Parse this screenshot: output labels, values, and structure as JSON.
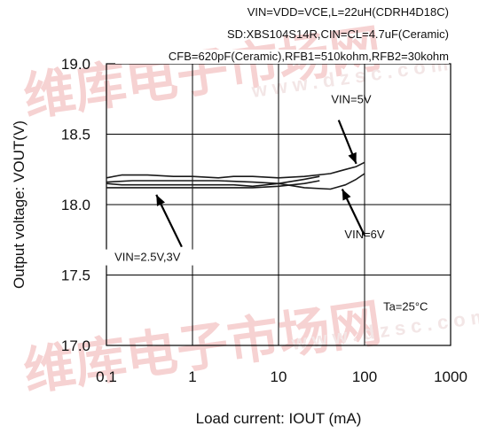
{
  "chart_data": {
    "type": "line",
    "title": "",
    "conditions": [
      "VIN=VDD=VCE,L=22uH(CDRH4D18C)",
      "SD:XBS104S14R,CIN=CL=4.7uF(Ceramic)",
      "CFB=620pF(Ceramic),RFB1=510kohm,RFB2=30kohm"
    ],
    "xlabel": "Load current: IOUT (mA)",
    "ylabel": "Output voltage: VOUT(V)",
    "xscale": "log",
    "xlim": [
      0.1,
      1000
    ],
    "ylim": [
      17.0,
      19.0
    ],
    "xticks": [
      "0.1",
      "1",
      "10",
      "100",
      "1000"
    ],
    "yticks": [
      "19.0",
      "18.5",
      "18.0",
      "17.5",
      "17.0"
    ],
    "grid": true,
    "series": [
      {
        "name": "VIN=5V",
        "x": [
          0.1,
          0.15,
          0.3,
          0.6,
          1,
          2,
          3,
          5,
          10,
          20,
          40,
          60,
          80,
          100
        ],
        "y": [
          18.19,
          18.21,
          18.21,
          18.2,
          18.2,
          18.19,
          18.2,
          18.2,
          18.19,
          18.2,
          18.22,
          18.25,
          18.27,
          18.3
        ]
      },
      {
        "name": "VIN=6V",
        "x": [
          0.1,
          0.2,
          0.5,
          1,
          2,
          5,
          10,
          20,
          40,
          60,
          80,
          100
        ],
        "y": [
          18.16,
          18.17,
          18.17,
          18.17,
          18.17,
          18.16,
          18.15,
          18.12,
          18.11,
          18.14,
          18.18,
          18.22
        ]
      },
      {
        "name": "VIN=2.5V",
        "x": [
          0.1,
          0.15,
          0.3,
          1,
          3,
          5,
          10,
          20,
          30
        ],
        "y": [
          18.15,
          18.14,
          18.14,
          18.14,
          18.14,
          18.13,
          18.15,
          18.18,
          18.2
        ]
      },
      {
        "name": "VIN=3V",
        "x": [
          0.1,
          0.2,
          0.5,
          1,
          2,
          5,
          10,
          20,
          30
        ],
        "y": [
          18.12,
          18.12,
          18.12,
          18.12,
          18.12,
          18.12,
          18.13,
          18.15,
          18.17
        ]
      }
    ],
    "annotations": [
      {
        "text": "VIN=5V",
        "x": 70,
        "y": 18.72
      },
      {
        "text": "VIN=6V",
        "x": 100,
        "y": 17.76
      },
      {
        "text": "VIN=2.5V,3V",
        "x": 0.3,
        "y": 17.6
      },
      {
        "text": "Ta=25°C",
        "x": 300,
        "y": 17.25
      }
    ]
  },
  "watermark": {
    "text": "维库电子市场网",
    "url": "www.dzsc.com"
  }
}
